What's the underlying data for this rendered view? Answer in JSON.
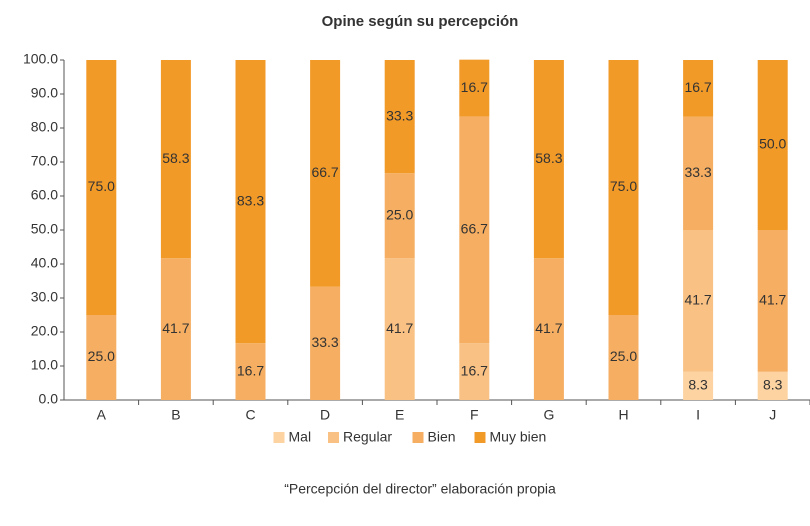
{
  "chart_data": {
    "type": "stacked_bar",
    "title": "Opine según su percepción",
    "categories": [
      "A",
      "B",
      "C",
      "D",
      "E",
      "F",
      "G",
      "H",
      "I",
      "J"
    ],
    "series": [
      {
        "name": "Mal",
        "color": "#fcd3a1",
        "values": [
          null,
          null,
          null,
          null,
          null,
          null,
          null,
          null,
          8.3,
          8.3
        ],
        "value_labels": [
          null,
          null,
          null,
          null,
          null,
          null,
          null,
          null,
          "8.3",
          "8.3"
        ]
      },
      {
        "name": "Regular",
        "color": "#f9c183",
        "values": [
          null,
          null,
          null,
          null,
          41.7,
          16.7,
          null,
          null,
          41.7,
          null
        ],
        "value_labels": [
          null,
          null,
          null,
          null,
          "41.7",
          "16.7",
          null,
          null,
          "41.7",
          null
        ]
      },
      {
        "name": "Bien",
        "color": "#f6af62",
        "values": [
          25.0,
          41.7,
          16.7,
          33.3,
          25.0,
          66.7,
          41.7,
          25.0,
          33.3,
          41.7
        ],
        "value_labels": [
          "25.0",
          "41.7",
          "16.7",
          "33.3",
          "25.0",
          "66.7",
          "41.7",
          "25.0",
          "33.3",
          "41.7"
        ]
      },
      {
        "name": "Muy bien",
        "color": "#f29a28",
        "values": [
          75.0,
          58.3,
          83.3,
          66.7,
          33.3,
          16.7,
          58.3,
          75.0,
          16.7,
          50.0
        ],
        "value_labels": [
          "75.0",
          "58.3",
          "83.3",
          "66.7",
          "33.3",
          "16.7",
          "58.3",
          "75.0",
          "16.7",
          "50.0"
        ]
      }
    ],
    "ylim": [
      0,
      100
    ],
    "yticks": [
      {
        "value": 0,
        "label": "0.0"
      },
      {
        "value": 10,
        "label": "10.0"
      },
      {
        "value": 20,
        "label": "20.0"
      },
      {
        "value": 30,
        "label": "30.0"
      },
      {
        "value": 40,
        "label": "40.0"
      },
      {
        "value": 50,
        "label": "50.0"
      },
      {
        "value": 60,
        "label": "60.0"
      },
      {
        "value": 70,
        "label": "70.0"
      },
      {
        "value": 80,
        "label": "80.0"
      },
      {
        "value": 90,
        "label": "90.0"
      },
      {
        "value": 100,
        "label": "100.0"
      }
    ],
    "legend": "bottom",
    "source": "“Percepción del director” elaboración propia"
  }
}
